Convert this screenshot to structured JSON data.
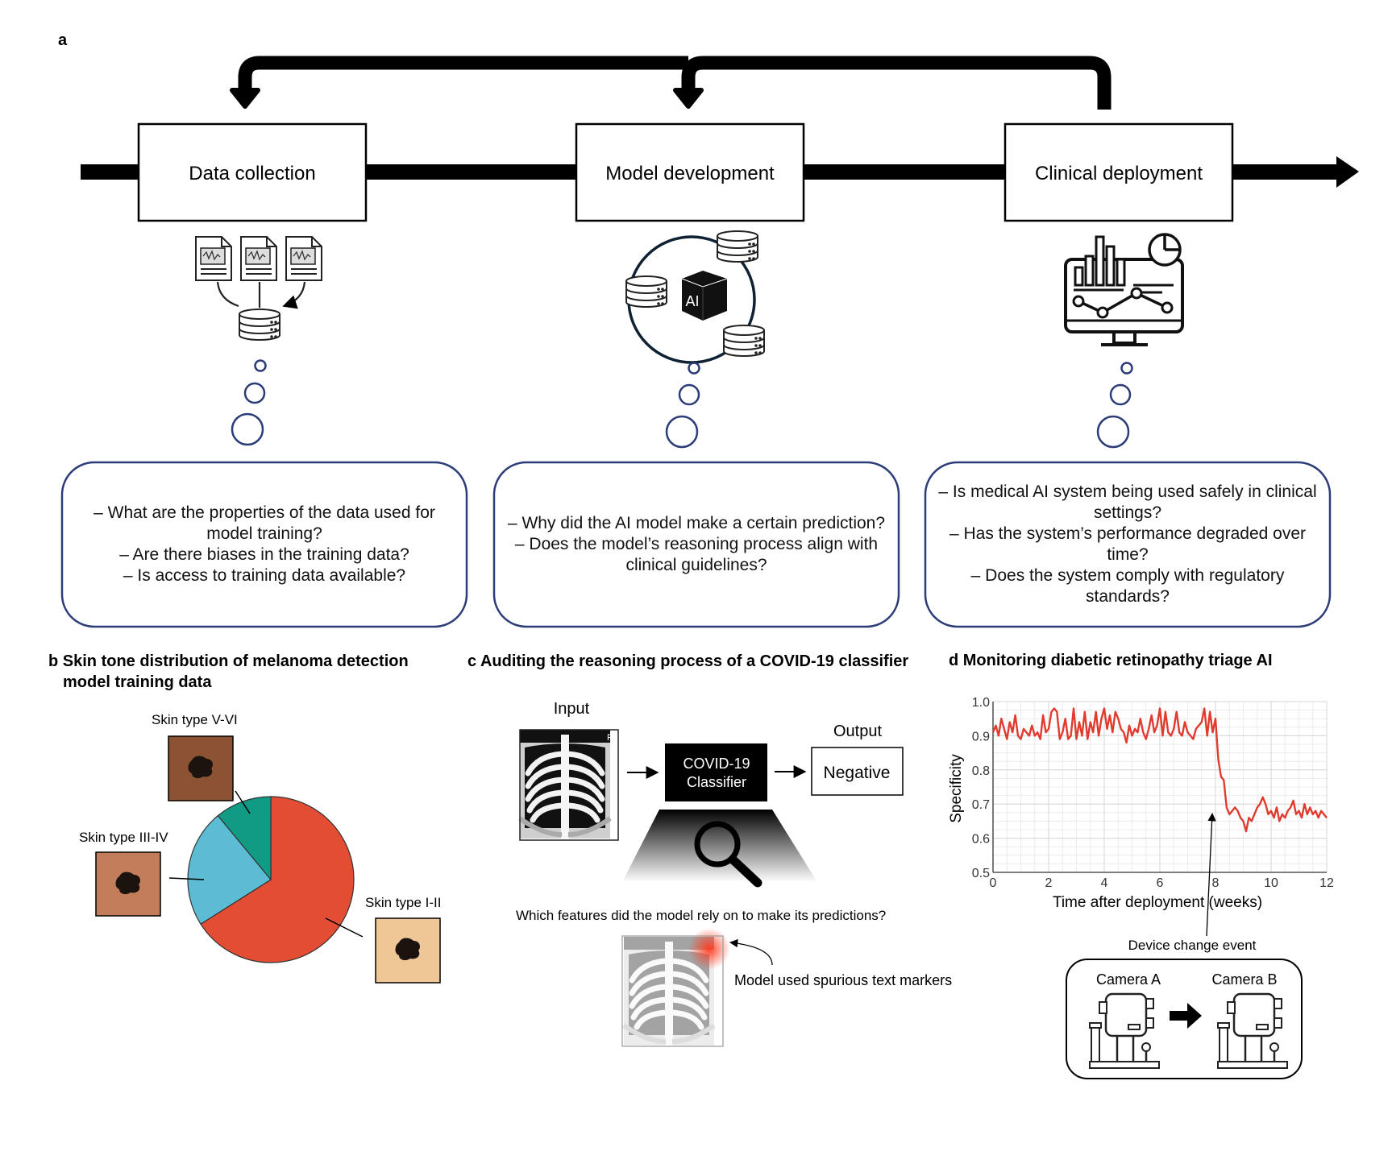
{
  "panel_a": {
    "label": "a",
    "stages": [
      "Data collection",
      "Model development",
      "Clinical deployment"
    ],
    "questions": [
      [
        "– What are the properties of the data used for model training?",
        "– Are there biases in the training data?",
        "– Is access to training data available?"
      ],
      [
        "– Why did the AI model make a certain prediction?",
        "– Does the model’s reasoning process align with clinical guidelines?"
      ],
      [
        "– Is medical AI system being used safely in clinical settings?",
        "– Has the system’s performance degraded over time?",
        "– Does the system comply with regulatory standards?"
      ]
    ],
    "ai_cube_label": "AI"
  },
  "panel_b": {
    "title_line1": "b Skin tone distribution of melanoma detection",
    "title_line2": "model training data",
    "colors": {
      "I-II": "#e34d33",
      "III-IV": "#5bbcd3",
      "V-VI": "#119a84"
    },
    "skin_swatches": {
      "I-II": "#efc796",
      "III-IV": "#c47d5b",
      "V-VI": "#8b5233"
    }
  },
  "panel_c": {
    "title": "c Auditing the reasoning process of a COVID-19 classifier",
    "input_label": "Input",
    "output_label": "Output",
    "xray_marker": "R",
    "classifier_line1": "COVID-19",
    "classifier_line2": "Classifier",
    "output_value": "Negative",
    "question": "Which features did the model rely on to make its predictions?",
    "annotation": "Model used spurious text markers"
  },
  "panel_d": {
    "title": "d Monitoring diabetic retinopathy triage AI",
    "event_label": "Device change event",
    "camera_a": "Camera A",
    "camera_b": "Camera B",
    "line_color": "#e03b2e"
  },
  "chart_data": [
    {
      "type": "pie",
      "labels": [
        "Skin type I-II",
        "Skin type III-IV",
        "Skin type V-VI"
      ],
      "values": [
        66,
        23,
        11
      ],
      "colors": [
        "#e34d33",
        "#5bbcd3",
        "#119a84"
      ]
    },
    {
      "type": "line",
      "title": "",
      "xlabel": "Time after deployment (weeks)",
      "ylabel": "Specificity",
      "xlim": [
        0,
        12
      ],
      "ylim": [
        0.5,
        1.0
      ],
      "xticks": [
        "0",
        "2",
        "4",
        "6",
        "8",
        "10",
        "12"
      ],
      "yticks": [
        "0.5",
        "0.6",
        "0.7",
        "0.8",
        "0.9",
        "1.0"
      ],
      "grid": true,
      "series": [
        {
          "x": [
            0,
            0.1,
            0.2,
            0.3,
            0.4,
            0.5,
            0.6,
            0.7,
            0.8,
            0.9,
            1.0,
            1.1,
            1.2,
            1.3,
            1.4,
            1.5,
            1.6,
            1.7,
            1.8,
            1.9,
            2.0,
            2.1,
            2.2,
            2.3,
            2.4,
            2.5,
            2.6,
            2.7,
            2.8,
            2.9,
            3.0,
            3.1,
            3.2,
            3.3,
            3.4,
            3.5,
            3.6,
            3.7,
            3.8,
            3.9,
            4.0,
            4.1,
            4.2,
            4.3,
            4.4,
            4.5,
            4.6,
            4.7,
            4.8,
            4.9,
            5.0,
            5.1,
            5.2,
            5.3,
            5.4,
            5.5,
            5.6,
            5.7,
            5.8,
            5.9,
            6.0,
            6.1,
            6.2,
            6.3,
            6.4,
            6.5,
            6.6,
            6.7,
            6.8,
            6.9,
            7.0,
            7.1,
            7.2,
            7.3,
            7.4,
            7.5,
            7.6,
            7.7,
            7.8,
            7.9,
            8.0,
            8.1,
            8.2,
            8.3,
            8.4,
            8.5,
            8.6,
            8.7,
            8.8,
            8.9,
            9.0,
            9.1,
            9.2,
            9.3,
            9.4,
            9.5,
            9.6,
            9.7,
            9.8,
            9.9,
            10.0,
            10.1,
            10.2,
            10.3,
            10.4,
            10.5,
            10.6,
            10.7,
            10.8,
            10.9,
            11.0,
            11.1,
            11.2,
            11.3,
            11.4,
            11.5,
            11.6,
            11.7,
            11.8,
            11.9,
            12.0
          ],
          "y": [
            0.91,
            0.93,
            0.9,
            0.95,
            0.92,
            0.89,
            0.94,
            0.91,
            0.96,
            0.9,
            0.89,
            0.92,
            0.91,
            0.9,
            0.93,
            0.9,
            0.91,
            0.89,
            0.96,
            0.91,
            0.92,
            0.97,
            0.98,
            0.97,
            0.89,
            0.91,
            0.95,
            0.89,
            0.9,
            0.98,
            0.89,
            0.94,
            0.9,
            0.97,
            0.89,
            0.94,
            0.91,
            0.97,
            0.9,
            0.95,
            0.98,
            0.92,
            0.96,
            0.91,
            0.97,
            0.95,
            0.92,
            0.91,
            0.88,
            0.93,
            0.9,
            0.92,
            0.91,
            0.95,
            0.91,
            0.89,
            0.92,
            0.96,
            0.91,
            0.93,
            0.98,
            0.9,
            0.97,
            0.91,
            0.9,
            0.92,
            0.97,
            0.91,
            0.9,
            0.94,
            0.91,
            0.9,
            0.89,
            0.92,
            0.93,
            0.94,
            0.98,
            0.9,
            0.97,
            0.91,
            0.95,
            0.83,
            0.78,
            0.77,
            0.69,
            0.67,
            0.68,
            0.69,
            0.68,
            0.66,
            0.65,
            0.62,
            0.66,
            0.65,
            0.67,
            0.69,
            0.7,
            0.72,
            0.7,
            0.67,
            0.68,
            0.66,
            0.69,
            0.65,
            0.67,
            0.66,
            0.68,
            0.69,
            0.71,
            0.67,
            0.68,
            0.66,
            0.7,
            0.67,
            0.69,
            0.67,
            0.68,
            0.66,
            0.68,
            0.67,
            0.66
          ]
        }
      ]
    }
  ]
}
